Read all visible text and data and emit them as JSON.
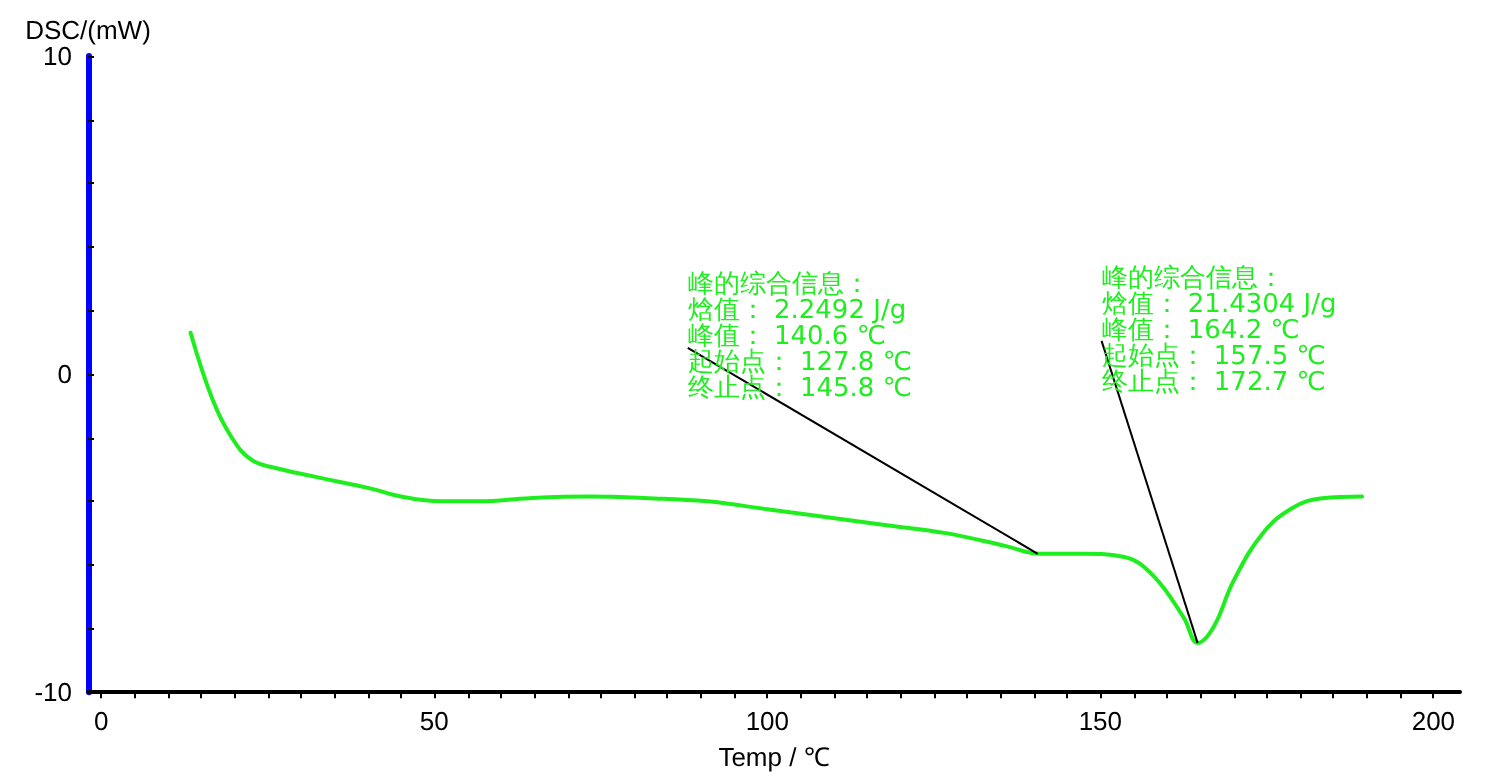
{
  "chart_data": {
    "type": "line",
    "xlabel": "Temp / ℃",
    "ylabel": "DSC/(mW)",
    "x": [
      13.4,
      16.7,
      19.6,
      22.6,
      27.1,
      31.5,
      36,
      40.5,
      45,
      50.9,
      56.8,
      64.3,
      73.2,
      82.1,
      91,
      100,
      109,
      117.9,
      126.8,
      135.7,
      141,
      147.6,
      153.6,
      158,
      162.5,
      164.6,
      167,
      170,
      174.4,
      178.9,
      183.3,
      189.3
    ],
    "values": [
      1.3,
      -0.8,
      -2.0,
      -2.7,
      -3.0,
      -3.2,
      -3.4,
      -3.6,
      -3.85,
      -4.0,
      -4.0,
      -3.9,
      -3.85,
      -3.9,
      -4.0,
      -4.25,
      -4.5,
      -4.75,
      -5.0,
      -5.4,
      -5.65,
      -5.65,
      -5.75,
      -6.35,
      -7.65,
      -8.45,
      -7.95,
      -6.5,
      -5.0,
      -4.2,
      -3.9,
      -3.85
    ],
    "color": "#1eee1e",
    "xlim": [
      -2,
      204
    ],
    "xticks": [
      0,
      {
        "value": 5,
        "label": null
      },
      {
        "value": 10,
        "label": null
      },
      {
        "value": 15,
        "label": null
      },
      {
        "value": 20,
        "label": null
      },
      {
        "value": 25,
        "label": null
      },
      {
        "value": 30,
        "label": null
      },
      {
        "value": 35,
        "label": null
      },
      {
        "value": 40,
        "label": null
      },
      {
        "value": 45,
        "label": null
      },
      50,
      {
        "value": 55,
        "label": null
      },
      {
        "value": 60,
        "label": null
      },
      {
        "value": 65,
        "label": null
      },
      {
        "value": 70,
        "label": null
      },
      {
        "value": 75,
        "label": null
      },
      {
        "value": 80,
        "label": null
      },
      {
        "value": 85,
        "label": null
      },
      {
        "value": 90,
        "label": null
      },
      {
        "value": 95,
        "label": null
      },
      100,
      {
        "value": 105,
        "label": null
      },
      {
        "value": 110,
        "label": null
      },
      {
        "value": 115,
        "label": null
      },
      {
        "value": 120,
        "label": null
      },
      {
        "value": 125,
        "label": null
      },
      {
        "value": 130,
        "label": null
      },
      {
        "value": 135,
        "label": null
      },
      {
        "value": 140,
        "label": null
      },
      {
        "value": 145,
        "label": null
      },
      150,
      {
        "value": 155,
        "label": null
      },
      {
        "value": 160,
        "label": null
      },
      {
        "value": 165,
        "label": null
      },
      {
        "value": 170,
        "label": null
      },
      {
        "value": 175,
        "label": null
      },
      {
        "value": 180,
        "label": null
      },
      {
        "value": 185,
        "label": null
      },
      {
        "value": 190,
        "label": null
      },
      {
        "value": 195,
        "label": null
      },
      200
    ],
    "ylim": [
      -10,
      10
    ],
    "yticks": [
      -10,
      {
        "value": -8,
        "label": null
      },
      {
        "value": -6,
        "label": null
      },
      {
        "value": -4,
        "label": null
      },
      {
        "value": -2,
        "label": null
      },
      0,
      {
        "value": 2,
        "label": null
      },
      {
        "value": 4,
        "label": null
      },
      {
        "value": 6,
        "label": null
      },
      {
        "value": 8,
        "label": null
      },
      10
    ],
    "grid": false,
    "annotations": [
      "峰的综合信息：",
      "焓值： 2.2492 J/g",
      {
        "text": "峰值： 140.6 ℃",
        "x": 140.6,
        "y": -5.65
      },
      "起始点： 127.8 ℃",
      "终止点： 145.8 ℃",
      "峰的综合信息：",
      "焓值： 21.4304 J/g",
      {
        "text": "峰值： 164.2 ℃",
        "x": 164.6,
        "y": -8.45
      },
      "起始点： 157.5 ℃",
      "终止点： 172.7 ℃"
    ]
  }
}
